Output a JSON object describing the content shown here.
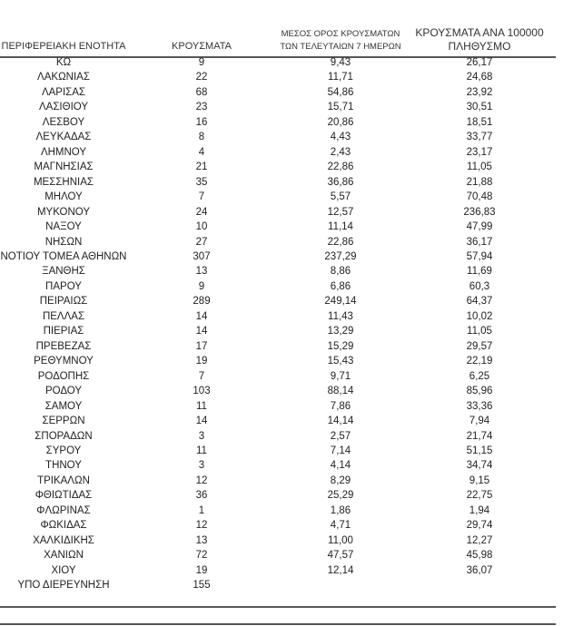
{
  "table": {
    "headers": {
      "region": "ΠΕΡΙΦΕΡΕΙΑΚΗ ΕΝΟΤΗΤΑ",
      "cases": "ΚΡΟΥΣΜΑΤΑ",
      "avg7_line1": "ΜΕΣΟΣ ΟΡΟΣ ΚΡΟΥΣΜΑΤΩΝ",
      "avg7_line2": "ΤΩΝ ΤΕΛΕΥΤΑΙΩΝ 7 ΗΜΕΡΩΝ",
      "per100k_line1": "ΚΡΟΥΣΜΑΤΑ ΑΝΑ 100000",
      "per100k_line2": "ΠΛΗΘΥΣΜΟ"
    },
    "rows": [
      [
        "ΚΩ",
        "9",
        "9,43",
        "26,17"
      ],
      [
        "ΛΑΚΩΝΙΑΣ",
        "22",
        "11,71",
        "24,68"
      ],
      [
        "ΛΑΡΙΣΑΣ",
        "68",
        "54,86",
        "23,92"
      ],
      [
        "ΛΑΣΙΘΙΟΥ",
        "23",
        "15,71",
        "30,51"
      ],
      [
        "ΛΕΣΒΟΥ",
        "16",
        "20,86",
        "18,51"
      ],
      [
        "ΛΕΥΚΑΔΑΣ",
        "8",
        "4,43",
        "33,77"
      ],
      [
        "ΛΗΜΝΟΥ",
        "4",
        "2,43",
        "23,17"
      ],
      [
        "ΜΑΓΝΗΣΙΑΣ",
        "21",
        "22,86",
        "11,05"
      ],
      [
        "ΜΕΣΣΗΝΙΑΣ",
        "35",
        "36,86",
        "21,88"
      ],
      [
        "ΜΗΛΟΥ",
        "7",
        "5,57",
        "70,48"
      ],
      [
        "ΜΥΚΟΝΟΥ",
        "24",
        "12,57",
        "236,83"
      ],
      [
        "ΝΑΞΟΥ",
        "10",
        "11,14",
        "47,99"
      ],
      [
        "ΝΗΣΩΝ",
        "27",
        "22,86",
        "36,17"
      ],
      [
        "ΝΟΤΙΟΥ ΤΟΜΕΑ ΑΘΗΝΩΝ",
        "307",
        "237,29",
        "57,94"
      ],
      [
        "ΞΑΝΘΗΣ",
        "13",
        "8,86",
        "11,69"
      ],
      [
        "ΠΑΡΟΥ",
        "9",
        "6,86",
        "60,3"
      ],
      [
        "ΠΕΙΡΑΙΩΣ",
        "289",
        "249,14",
        "64,37"
      ],
      [
        "ΠΕΛΛΑΣ",
        "14",
        "11,43",
        "10,02"
      ],
      [
        "ΠΙΕΡΙΑΣ",
        "14",
        "13,29",
        "11,05"
      ],
      [
        "ΠΡΕΒΕΖΑΣ",
        "17",
        "15,29",
        "29,57"
      ],
      [
        "ΡΕΘΥΜΝΟΥ",
        "19",
        "15,43",
        "22,19"
      ],
      [
        "ΡΟΔΟΠΗΣ",
        "7",
        "9,71",
        "6,25"
      ],
      [
        "ΡΟΔΟΥ",
        "103",
        "88,14",
        "85,96"
      ],
      [
        "ΣΑΜΟΥ",
        "11",
        "7,86",
        "33,36"
      ],
      [
        "ΣΕΡΡΩΝ",
        "14",
        "14,14",
        "7,94"
      ],
      [
        "ΣΠΟΡΑΔΩΝ",
        "3",
        "2,57",
        "21,74"
      ],
      [
        "ΣΥΡΟΥ",
        "11",
        "7,14",
        "51,15"
      ],
      [
        "ΤΗΝΟΥ",
        "3",
        "4,14",
        "34,74"
      ],
      [
        "ΤΡΙΚΑΛΩΝ",
        "12",
        "8,29",
        "9,15"
      ],
      [
        "ΦΘΙΩΤΙΔΑΣ",
        "36",
        "25,29",
        "22,75"
      ],
      [
        "ΦΛΩΡΙΝΑΣ",
        "1",
        "1,86",
        "1,94"
      ],
      [
        "ΦΩΚΙΔΑΣ",
        "12",
        "4,71",
        "29,74"
      ],
      [
        "ΧΑΛΚΙΔΙΚΗΣ",
        "13",
        "11,00",
        "12,27"
      ],
      [
        "ΧΑΝΙΩΝ",
        "72",
        "47,57",
        "45,98"
      ],
      [
        "ΧΙΟΥ",
        "19",
        "12,14",
        "36,07"
      ],
      [
        "ΥΠΟ ΔΙΕΡΕΥΝΗΣΗ",
        "155",
        "",
        ""
      ]
    ]
  }
}
